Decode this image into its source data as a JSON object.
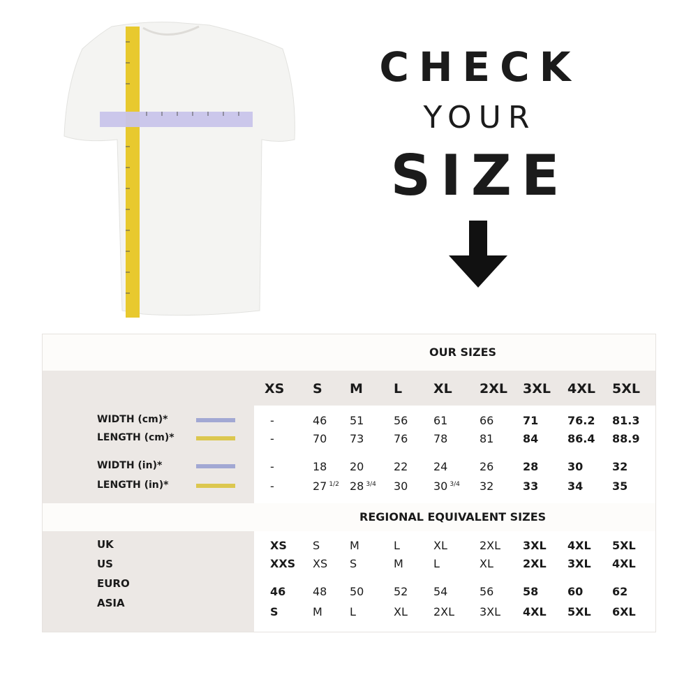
{
  "heading": {
    "line1": "CHECK",
    "line2": "YOUR",
    "line3": "SIZE",
    "arrow_icon": "arrow-down-icon"
  },
  "illustration": {
    "tape_vertical_color": "#e8c92e",
    "tape_horizontal_color": "#b8b4e0"
  },
  "our_sizes": {
    "title": "OUR SIZES",
    "columns": [
      "XS",
      "S",
      "M",
      "L",
      "XL",
      "2XL",
      "3XL",
      "4XL",
      "5XL"
    ],
    "rows": [
      {
        "label": "WIDTH (cm)*",
        "swatch": "#a2a8d3",
        "values": [
          {
            "v": "-"
          },
          {
            "v": "46"
          },
          {
            "v": "51"
          },
          {
            "v": "56"
          },
          {
            "v": "61"
          },
          {
            "v": "66"
          },
          {
            "v": "71"
          },
          {
            "v": "76.2"
          },
          {
            "v": "81.3"
          }
        ]
      },
      {
        "label": "LENGTH (cm)*",
        "swatch": "#dcc74f",
        "values": [
          {
            "v": "-"
          },
          {
            "v": "70"
          },
          {
            "v": "73"
          },
          {
            "v": "76"
          },
          {
            "v": "78"
          },
          {
            "v": "81"
          },
          {
            "v": "84"
          },
          {
            "v": "86.4"
          },
          {
            "v": "88.9"
          }
        ]
      },
      {
        "label": "WIDTH (in)*",
        "swatch": "#a2a8d3",
        "values": [
          {
            "v": "-"
          },
          {
            "v": "18"
          },
          {
            "v": "20"
          },
          {
            "v": "22"
          },
          {
            "v": "24"
          },
          {
            "v": "26"
          },
          {
            "v": "28"
          },
          {
            "v": "30"
          },
          {
            "v": "32"
          }
        ]
      },
      {
        "label": "LENGTH (in)*",
        "swatch": "#dcc74f",
        "values": [
          {
            "v": "-"
          },
          {
            "v": "27",
            "sup": "1/2"
          },
          {
            "v": "28",
            "sup": "3/4"
          },
          {
            "v": "30"
          },
          {
            "v": "30",
            "sup": "3/4"
          },
          {
            "v": "32"
          },
          {
            "v": "33"
          },
          {
            "v": "34"
          },
          {
            "v": "35"
          }
        ]
      }
    ]
  },
  "regional": {
    "title": "REGIONAL EQUIVALENT SIZES",
    "labels": [
      "UK",
      "US",
      "EURO",
      "ASIA"
    ],
    "rows": [
      [
        "XS",
        "S",
        "M",
        "L",
        "XL",
        "2XL",
        "3XL",
        "4XL",
        "5XL"
      ],
      [
        "XXS",
        "XS",
        "S",
        "M",
        "L",
        "XL",
        "2XL",
        "3XL",
        "4XL"
      ],
      [
        "46",
        "48",
        "50",
        "52",
        "54",
        "56",
        "58",
        "60",
        "62"
      ],
      [
        "S",
        "M",
        "L",
        "XL",
        "2XL",
        "3XL",
        "4XL",
        "5XL",
        "6XL"
      ]
    ]
  }
}
